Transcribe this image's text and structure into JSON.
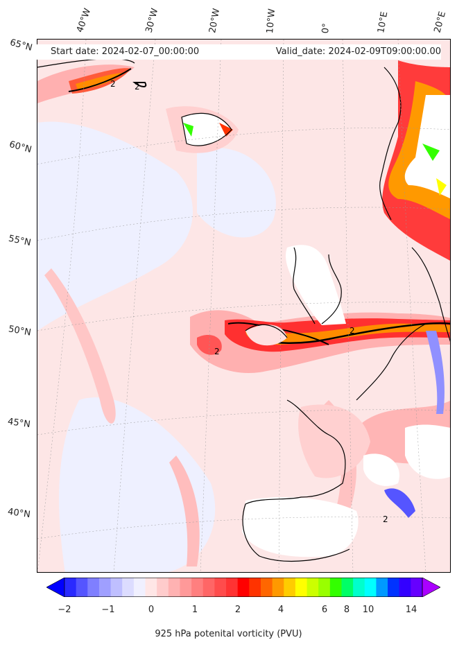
{
  "header": {
    "start_date": "Start date: 2024-02-07_00:00:00",
    "valid_date": "Valid_date: 2024-02-09T09:00:00.00"
  },
  "longitude_labels": [
    "40°W",
    "30°W",
    "20°W",
    "10°W",
    "0°",
    "10°E",
    "20°E"
  ],
  "latitude_labels": [
    "65°N",
    "60°N",
    "55°N",
    "50°N",
    "45°N",
    "40°N"
  ],
  "contour_labels": [
    "2",
    "2",
    "2",
    "2",
    "2"
  ],
  "colorbar": {
    "title": "925 hPa potenital vorticity (PVU)",
    "ticks": [
      "−2",
      "−1",
      "0",
      "1",
      "2",
      "4",
      "6",
      "8",
      "10",
      "14"
    ],
    "colors": [
      "#0000ff",
      "#2a2aff",
      "#5555ff",
      "#7f7fff",
      "#9f9fff",
      "#bfbfff",
      "#dcdcff",
      "#f0f0ff",
      "#ffe6e6",
      "#ffcccc",
      "#ffb2b2",
      "#ff9999",
      "#ff7f7f",
      "#ff6666",
      "#ff4c4c",
      "#ff3333",
      "#ff0000",
      "#ff3300",
      "#ff6600",
      "#ff9900",
      "#ffcc00",
      "#ffff00",
      "#ccff00",
      "#99ff00",
      "#33ff00",
      "#00ff66",
      "#00ffcc",
      "#00ffff",
      "#0099ff",
      "#0033ff",
      "#3300ff",
      "#6600ff",
      "#aa00ff"
    ]
  },
  "chart_data": {
    "type": "filled-contour map",
    "title": "925 hPa potential vorticity",
    "variable": "925 hPa potenital vorticity (PVU)",
    "start_date": "2024-02-07_00:00:00",
    "valid_date": "2024-02-09T09:00:00.00",
    "lon_range": [
      -45,
      22
    ],
    "lat_range": [
      37,
      66
    ],
    "color_levels": [
      -2,
      -1,
      0,
      1,
      2,
      4,
      6,
      8,
      10,
      14
    ],
    "contour_line_value": 2,
    "features": [
      {
        "name": "PV band across Ireland, Wales, England and North Sea",
        "approx_value": 2
      },
      {
        "name": "PV streak off south-east Greenland",
        "approx_value": 2
      },
      {
        "name": "Orographic PV over Norway",
        "approx_value": 10
      },
      {
        "name": "Orographic PV over Iceland",
        "approx_value": 6
      }
    ]
  }
}
